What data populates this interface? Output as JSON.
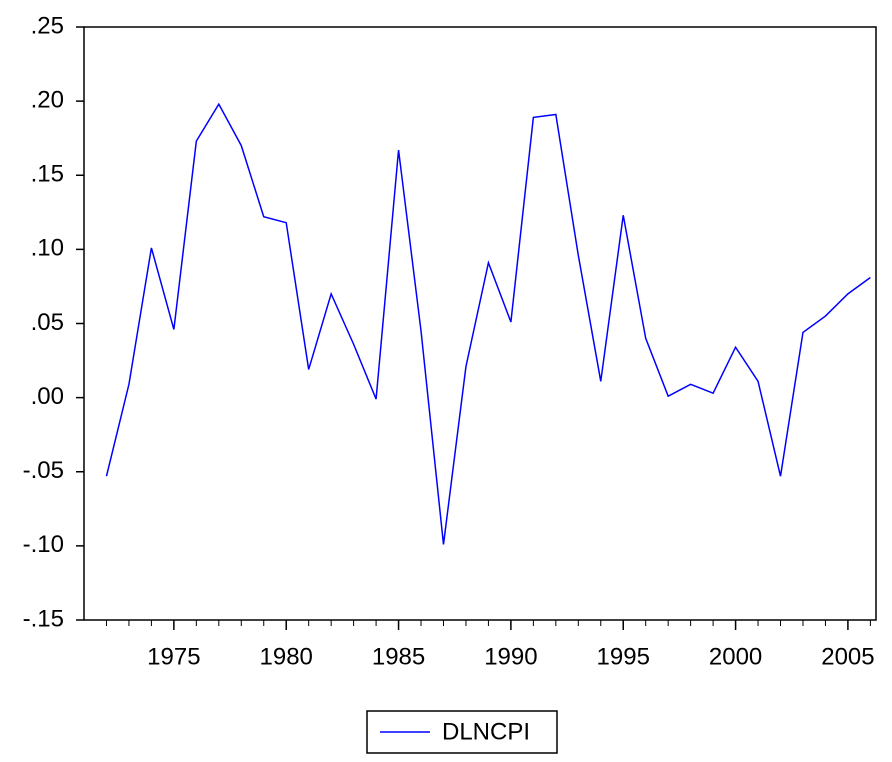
{
  "chart_data": {
    "type": "line",
    "x": [
      1972,
      1973,
      1974,
      1975,
      1976,
      1977,
      1978,
      1979,
      1980,
      1981,
      1982,
      1983,
      1984,
      1985,
      1986,
      1987,
      1988,
      1989,
      1990,
      1991,
      1992,
      1993,
      1994,
      1995,
      1996,
      1997,
      1998,
      1999,
      2000,
      2001,
      2002,
      2003,
      2004,
      2005,
      2006
    ],
    "series": [
      {
        "name": "DLNCPI",
        "color": "#0000ff",
        "values": [
          -0.053,
          0.009,
          0.101,
          0.046,
          0.173,
          0.198,
          0.17,
          0.122,
          0.118,
          0.019,
          0.07,
          0.036,
          -0.001,
          0.167,
          0.045,
          -0.099,
          0.021,
          0.091,
          0.051,
          0.189,
          0.191,
          0.096,
          0.011,
          0.123,
          0.04,
          0.001,
          0.009,
          0.003,
          0.034,
          0.011,
          -0.053,
          0.044,
          0.055,
          0.07,
          0.081
        ]
      }
    ],
    "xlim": [
      1971,
      2006.25
    ],
    "xticks": [
      1975,
      1980,
      1985,
      1990,
      1995,
      2000,
      2005
    ],
    "ylim": [
      -0.15,
      0.25
    ],
    "yticks": [
      {
        "value": -0.15,
        "label": "-.15"
      },
      {
        "value": -0.1,
        "label": "-.10"
      },
      {
        "value": -0.05,
        "label": "-.05"
      },
      {
        "value": 0,
        "label": ".00"
      },
      {
        "value": 0.05,
        "label": ".05"
      },
      {
        "value": 0.1,
        "label": ".10"
      },
      {
        "value": 0.15,
        "label": ".15"
      },
      {
        "value": 0.2,
        "label": ".20"
      },
      {
        "value": 0.25,
        "label": ".25"
      }
    ],
    "legend": "bottom"
  }
}
